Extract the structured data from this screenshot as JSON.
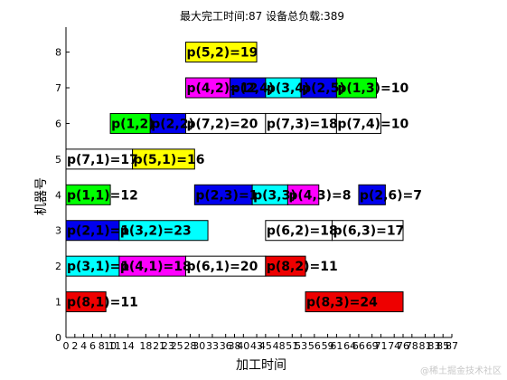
{
  "chart_data": {
    "type": "gantt",
    "title": "最大完工时间:87 设备总负载:389",
    "xlabel": "加工时间",
    "ylabel": "机器号",
    "xlim": [
      0,
      87
    ],
    "ylim": [
      0,
      8.7
    ],
    "x_ticks": [
      0,
      2,
      4,
      6,
      8,
      10,
      11,
      14,
      18,
      21,
      23,
      25,
      28,
      30,
      33,
      36,
      38,
      40,
      43,
      45,
      48,
      51,
      53,
      56,
      59,
      61,
      64,
      66,
      69,
      71,
      74,
      76,
      78,
      81,
      83,
      85,
      87
    ],
    "y_ticks": [
      0,
      1,
      2,
      3,
      4,
      5,
      6,
      7,
      8
    ],
    "colors": {
      "green": "#00ff00",
      "blue": "#0000ee",
      "cyan": "#00ffff",
      "magenta": "#ff00ff",
      "yellow": "#ffff00",
      "red": "#ee0000",
      "white": "#ffffff"
    },
    "tasks": [
      {
        "label": "p(8,1)=11",
        "machine": 1,
        "start": 0,
        "end": 9,
        "color": "red"
      },
      {
        "label": "p(8,3)=24",
        "machine": 1,
        "start": 54,
        "end": 76,
        "color": "red"
      },
      {
        "label": "p(3,1)=1",
        "machine": 2,
        "start": 0,
        "end": 12,
        "color": "cyan"
      },
      {
        "label": "p(4,1)=18",
        "machine": 2,
        "start": 12,
        "end": 27,
        "color": "magenta"
      },
      {
        "label": "p(6,1)=20",
        "machine": 2,
        "start": 27,
        "end": 45,
        "color": "white"
      },
      {
        "label": "p(8,2)=11",
        "machine": 2,
        "start": 45,
        "end": 54,
        "color": "red"
      },
      {
        "label": "p(2,1)=1",
        "machine": 3,
        "start": 0,
        "end": 12,
        "color": "blue"
      },
      {
        "label": "p(3,2)=23",
        "machine": 3,
        "start": 12,
        "end": 32,
        "color": "cyan"
      },
      {
        "label": "p(6,2)=18",
        "machine": 3,
        "start": 45,
        "end": 60,
        "color": "white"
      },
      {
        "label": "p(6,3)=17",
        "machine": 3,
        "start": 60,
        "end": 76,
        "color": "white"
      },
      {
        "label": "p(1,1)=12",
        "machine": 4,
        "start": 0,
        "end": 10,
        "color": "green"
      },
      {
        "label": "p(2,3)=1",
        "machine": 4,
        "start": 29,
        "end": 42,
        "color": "blue"
      },
      {
        "label": "p(3,3)",
        "machine": 4,
        "start": 42,
        "end": 50,
        "color": "cyan"
      },
      {
        "label": "p(4,3)=8",
        "machine": 4,
        "start": 50,
        "end": 57,
        "color": "magenta"
      },
      {
        "label": "p(2,6)=7",
        "machine": 4,
        "start": 66,
        "end": 72,
        "color": "blue"
      },
      {
        "label": "p(7,1)=17",
        "machine": 5,
        "start": 0,
        "end": 15,
        "color": "white"
      },
      {
        "label": "p(5,1)=16",
        "machine": 5,
        "start": 15,
        "end": 29,
        "color": "yellow"
      },
      {
        "label": "p(1,2)",
        "machine": 6,
        "start": 10,
        "end": 19,
        "color": "green"
      },
      {
        "label": "p(2,2)",
        "machine": 6,
        "start": 19,
        "end": 27,
        "color": "blue"
      },
      {
        "label": "p(7,2)=20",
        "machine": 6,
        "start": 27,
        "end": 45,
        "color": "white"
      },
      {
        "label": "p(7,3)=18",
        "machine": 6,
        "start": 45,
        "end": 61,
        "color": "white"
      },
      {
        "label": "p(7,4)=10",
        "machine": 6,
        "start": 61,
        "end": 71,
        "color": "white"
      },
      {
        "label": "p(4,2)=12",
        "machine": 7,
        "start": 27,
        "end": 37,
        "color": "magenta"
      },
      {
        "label": "p(2,4)",
        "machine": 7,
        "start": 37,
        "end": 45,
        "color": "blue"
      },
      {
        "label": "p(3,4)",
        "machine": 7,
        "start": 45,
        "end": 53,
        "color": "cyan"
      },
      {
        "label": "p(2,5)",
        "machine": 7,
        "start": 53,
        "end": 61,
        "color": "blue"
      },
      {
        "label": "p(1,3)=10",
        "machine": 7,
        "start": 61,
        "end": 70,
        "color": "green"
      },
      {
        "label": "p(5,2)=19",
        "machine": 8,
        "start": 27,
        "end": 43,
        "color": "yellow"
      }
    ]
  },
  "watermark": "@稀土掘金技术社区"
}
